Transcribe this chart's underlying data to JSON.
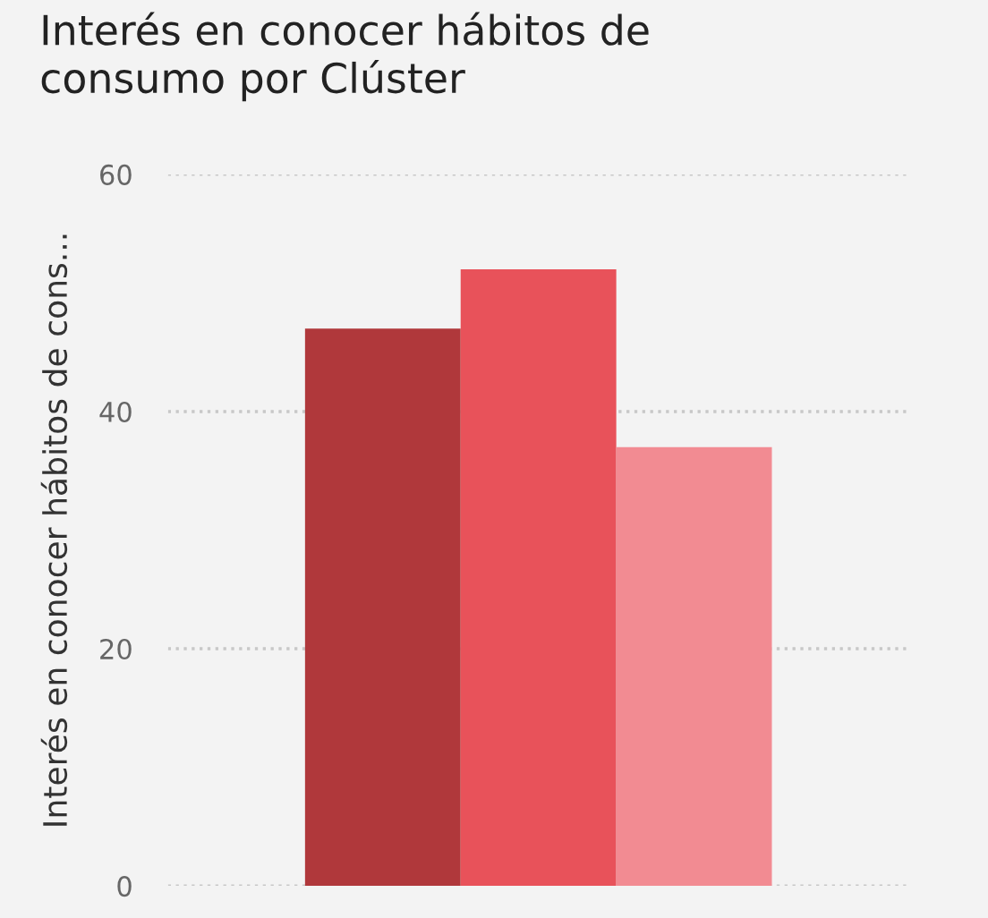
{
  "chart_data": {
    "type": "bar",
    "title": "Interés en conocer hábitos de\nconsumo por Clúster",
    "ylabel": "Interés en conocer hábitos de cons...",
    "categories": [
      null
    ],
    "series": [
      {
        "color": "#b0383b",
        "values": [
          47
        ]
      },
      {
        "color": "#e8525a",
        "values": [
          52
        ]
      },
      {
        "color": "#f28b92",
        "values": [
          37
        ]
      }
    ],
    "ylim": [
      0,
      60
    ],
    "yticks": [
      0,
      20,
      40,
      60
    ],
    "grid": "y",
    "line_style": "dotted"
  }
}
